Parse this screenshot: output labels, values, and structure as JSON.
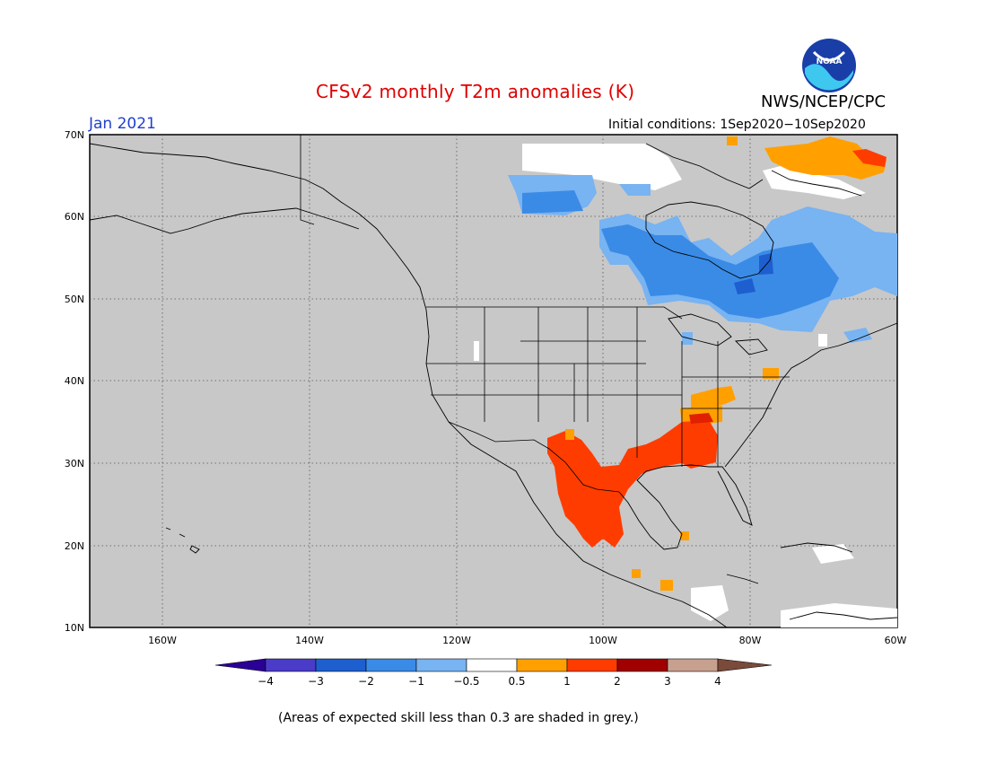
{
  "header": {
    "title": "CFSv2 monthly T2m anomalies (K)",
    "org": "NWS/NCEP/CPC",
    "logo_text": "NOAA",
    "month": "Jan 2021",
    "initial_conditions": "Initial conditions: 1Sep2020−10Sep2020"
  },
  "axes": {
    "lat_labels": [
      "70N",
      "60N",
      "50N",
      "40N",
      "30N",
      "20N",
      "10N"
    ],
    "lon_labels": [
      "160W",
      "140W",
      "120W",
      "100W",
      "80W",
      "60W"
    ]
  },
  "colorbar": {
    "labels": [
      "−4",
      "−3",
      "−2",
      "−1",
      "−0.5",
      "0.5",
      "1",
      "2",
      "3",
      "4"
    ],
    "colors": [
      "#2a0096",
      "#4a3cc8",
      "#1e5fcf",
      "#3a8be6",
      "#78b3f2",
      "#ffffff",
      "#ffa000",
      "#ff3c00",
      "#a00000",
      "#c8a090",
      "#7a4a3a",
      "#2200a0"
    ]
  },
  "colors": {
    "map_background": "#c8c8c8",
    "land_grey": "#c8c8c8",
    "title_red": "#e00000",
    "month_blue": "#1f3fd0",
    "anomaly_pos_1": "#ffa000",
    "anomaly_pos_2": "#ff3c00",
    "anomaly_pos_3": "#e02000",
    "anomaly_neg_1": "#78b3f2",
    "anomaly_neg_2": "#3a8be6",
    "anomaly_neg_3": "#1e5fcf"
  },
  "footer": {
    "note": "(Areas of expected skill less than 0.3 are shaded in grey.)"
  }
}
